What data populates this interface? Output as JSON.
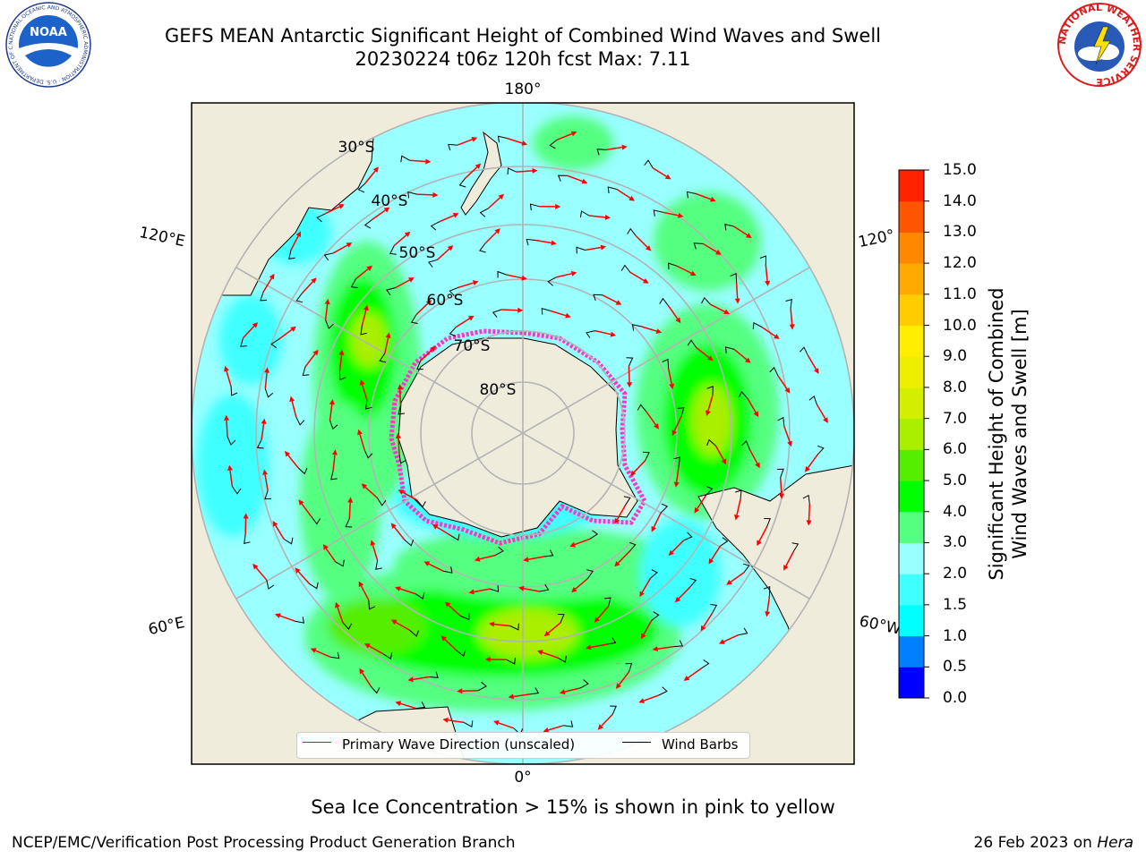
{
  "title": {
    "line1": "GEFS MEAN Antarctic Significant Height of Combined Wind Waves and Swell",
    "line2": "20230224 t06z 120h fcst   Max: 7.11"
  },
  "map": {
    "projection": "south polar stereographic",
    "meridian_labels": [
      "180°",
      "120°E",
      "120°",
      "60°E",
      "60°W",
      "0°"
    ],
    "parallel_labels": [
      "30°S",
      "40°S",
      "50°S",
      "60°S",
      "70°S",
      "80°S"
    ],
    "colors": {
      "land": "#efecdc",
      "ocean_low": "#99ffff",
      "arrow": "#ff0000",
      "barb": "#000000",
      "sea_ice": "#ff33cc",
      "grid": "#b3b3b3"
    }
  },
  "colorbar": {
    "title_line1": "Significant Height of Combined",
    "title_line2": "Wind Waves and Swell [m]",
    "tick_labels": [
      "0.0",
      "0.5",
      "1.0",
      "1.5",
      "2.0",
      "3.0",
      "4.0",
      "5.0",
      "6.0",
      "7.0",
      "8.0",
      "9.0",
      "10.0",
      "11.0",
      "12.0",
      "13.0",
      "14.0",
      "15.0"
    ],
    "colors": [
      "#0000ff",
      "#0080ff",
      "#00ffff",
      "#40ffff",
      "#99ffff",
      "#55ff80",
      "#00ff00",
      "#55ee00",
      "#aaee00",
      "#d4ee00",
      "#eeee00",
      "#ffee00",
      "#ffcc00",
      "#ffaa00",
      "#ff8800",
      "#ff5500",
      "#ff2200"
    ]
  },
  "legend": {
    "arrow_label": "Primary Wave Direction (unscaled)",
    "barb_label": "Wind Barbs"
  },
  "note": "Sea Ice Concentration > 15% is shown in pink to yellow",
  "footer": {
    "left": "NCEP/EMC/Verification Post Processing Product Generation Branch",
    "date": "26 Feb 2023 on ",
    "machine": "Hera"
  },
  "logos": {
    "noaa_text": "NOAA",
    "noaa_ring": "NATIONAL OCEANIC AND ATMOSPHERIC ADMINISTRATION · U.S. DEPARTMENT OF COMMERCE",
    "nws_ring": "NATIONAL WEATHER SERVICE"
  }
}
